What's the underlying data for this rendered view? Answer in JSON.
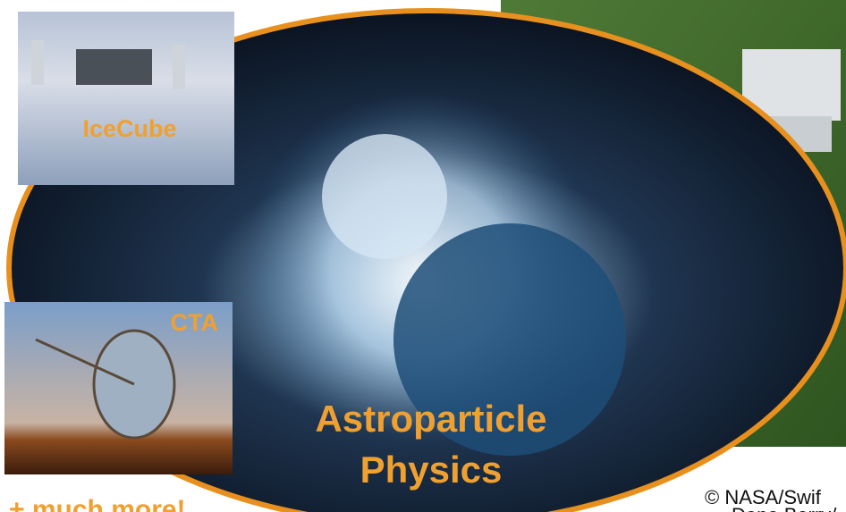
{
  "insets": [
    {
      "label": "IceCube"
    },
    {
      "label": "CTA"
    }
  ],
  "title": {
    "line1": "Astroparticle",
    "line2": "Physics"
  },
  "footer": "+ much more!",
  "credit": {
    "line1": "© NASA/Swif",
    "line2": "Dana Berry/"
  }
}
